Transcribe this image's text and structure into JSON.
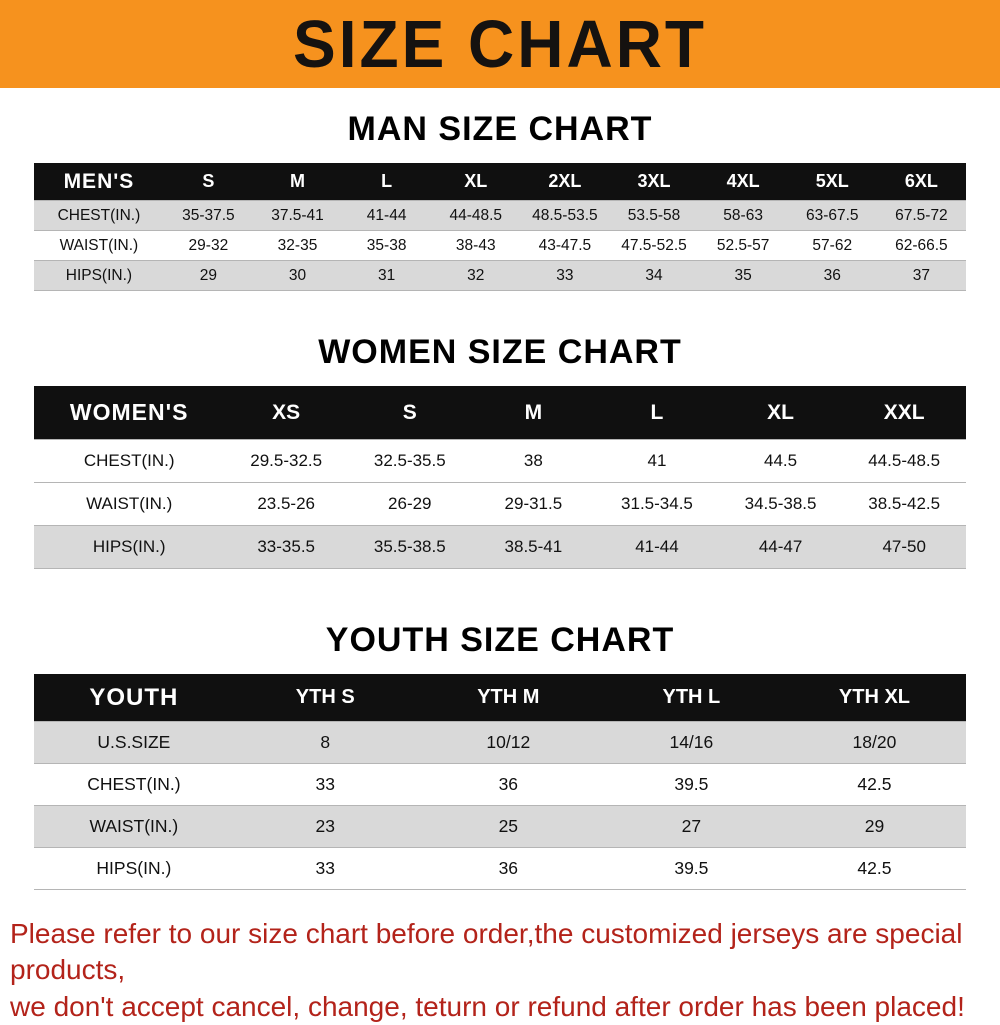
{
  "banner": {
    "title": "SIZE CHART",
    "bg_color": "#F6921E"
  },
  "chart_data": [
    {
      "type": "table",
      "title": "MAN SIZE CHART",
      "header_label": "MEN'S",
      "columns": [
        "S",
        "M",
        "L",
        "XL",
        "2XL",
        "3XL",
        "4XL",
        "5XL",
        "6XL"
      ],
      "rows": [
        {
          "label": "CHEST(IN.)",
          "values": [
            "35-37.5",
            "37.5-41",
            "41-44",
            "44-48.5",
            "48.5-53.5",
            "53.5-58",
            "58-63",
            "63-67.5",
            "67.5-72"
          ]
        },
        {
          "label": "WAIST(IN.)",
          "values": [
            "29-32",
            "32-35",
            "35-38",
            "38-43",
            "43-47.5",
            "47.5-52.5",
            "52.5-57",
            "57-62",
            "62-66.5"
          ]
        },
        {
          "label": "HIPS(IN.)",
          "values": [
            "29",
            "30",
            "31",
            "32",
            "33",
            "34",
            "35",
            "36",
            "37"
          ]
        }
      ]
    },
    {
      "type": "table",
      "title": "WOMEN SIZE CHART",
      "header_label": "WOMEN'S",
      "columns": [
        "XS",
        "S",
        "M",
        "L",
        "XL",
        "XXL"
      ],
      "rows": [
        {
          "label": "CHEST(IN.)",
          "values": [
            "29.5-32.5",
            "32.5-35.5",
            "38",
            "41",
            "44.5",
            "44.5-48.5"
          ]
        },
        {
          "label": "WAIST(IN.)",
          "values": [
            "23.5-26",
            "26-29",
            "29-31.5",
            "31.5-34.5",
            "34.5-38.5",
            "38.5-42.5"
          ]
        },
        {
          "label": "HIPS(IN.)",
          "values": [
            "33-35.5",
            "35.5-38.5",
            "38.5-41",
            "41-44",
            "44-47",
            "47-50"
          ]
        }
      ]
    },
    {
      "type": "table",
      "title": "YOUTH SIZE CHART",
      "header_label": "YOUTH",
      "columns": [
        "YTH S",
        "YTH M",
        "YTH L",
        "YTH XL"
      ],
      "rows": [
        {
          "label": "U.S.SIZE",
          "values": [
            "8",
            "10/12",
            "14/16",
            "18/20"
          ]
        },
        {
          "label": "CHEST(IN.)",
          "values": [
            "33",
            "36",
            "39.5",
            "42.5"
          ]
        },
        {
          "label": "WAIST(IN.)",
          "values": [
            "23",
            "25",
            "27",
            "29"
          ]
        },
        {
          "label": "HIPS(IN.)",
          "values": [
            "33",
            "36",
            "39.5",
            "42.5"
          ]
        }
      ]
    }
  ],
  "footer": {
    "line1": "Please refer to our size chart before order,the customized jerseys are special products,",
    "line2": "we don't accept cancel, change, teturn or refund after order has been placed!"
  }
}
